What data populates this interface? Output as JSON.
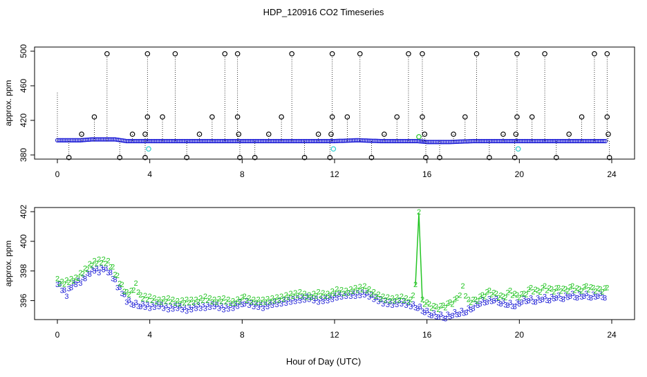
{
  "title": "HDP_120916  CO2 Timeseries",
  "xlabel": "Hour of Day (UTC)",
  "colors": {
    "blue": "#1f1fd6",
    "green": "#22c422",
    "black": "#000000",
    "cyan": "#22cccc"
  },
  "chart_data": [
    {
      "type": "scatter",
      "ylabel": "approx. ppm",
      "xlim": [
        0,
        24
      ],
      "ylim": [
        380,
        500
      ],
      "x_ticks": [
        0,
        4,
        8,
        12,
        16,
        20,
        24
      ],
      "y_ticks": [
        380,
        420,
        460,
        500
      ],
      "baseline_series": {
        "color": "blue",
        "x": [
          0,
          0.5,
          1,
          1.5,
          2,
          2.5,
          3,
          3.5,
          4,
          5,
          6,
          7,
          8,
          9,
          10,
          11,
          12,
          13,
          14,
          15,
          15.6,
          16,
          17,
          18,
          19,
          20,
          21,
          22,
          23,
          23.8
        ],
        "y": [
          397,
          397,
          397,
          398,
          398,
          398,
          396,
          396,
          396,
          396,
          396,
          396,
          396,
          396,
          396,
          396,
          396,
          397,
          396,
          396,
          396,
          395,
          395,
          396,
          396,
          396,
          396,
          396,
          396,
          396
        ]
      },
      "excursions": {
        "color": "black",
        "x_high": [
          2.15,
          3.9,
          5.1,
          7.25,
          7.8,
          10.15,
          11.9,
          13.1,
          15.2,
          15.8,
          18.15,
          19.9,
          21.1,
          23.25,
          23.8
        ],
        "y_high": [
          497,
          497,
          497,
          497,
          497,
          497,
          497,
          497,
          497,
          497,
          497,
          497,
          497,
          497,
          497
        ],
        "x_mid": [
          1.6,
          3.9,
          4.55,
          6.7,
          7.8,
          9.7,
          11.9,
          12.55,
          14.7,
          15.8,
          17.65,
          19.9,
          20.55,
          22.7,
          23.8
        ],
        "y_mid": [
          424,
          424,
          424,
          424,
          424,
          424,
          424,
          424,
          424,
          424,
          424,
          424,
          424,
          424,
          424
        ],
        "x_low_up": [
          1.05,
          3.25,
          3.8,
          6.15,
          7.85,
          9.15,
          11.3,
          11.85,
          14.15,
          15.9,
          17.15,
          19.3,
          19.85,
          22.15,
          23.85
        ],
        "y_low_up": [
          404,
          404,
          404,
          404,
          404,
          404,
          404,
          404,
          404,
          404,
          404,
          404,
          404,
          404,
          404
        ],
        "x_low": [
          0.5,
          2.7,
          3.8,
          5.6,
          7.9,
          8.55,
          10.7,
          11.8,
          13.6,
          15.95,
          16.55,
          18.7,
          19.8,
          21.6,
          23.9
        ],
        "y_low": [
          377,
          377,
          377,
          377,
          377,
          377,
          377,
          377,
          377,
          377,
          377,
          377,
          377,
          377,
          377
        ]
      },
      "highlight_points": {
        "color": "cyan",
        "x": [
          3.95,
          11.95,
          19.95
        ],
        "y": [
          387,
          387,
          387
        ]
      },
      "green_points": {
        "color": "green",
        "x": [
          15.65
        ],
        "y": [
          401
        ]
      }
    },
    {
      "type": "scatter",
      "ylabel": "approx. ppm",
      "xlim": [
        0,
        24
      ],
      "ylim": [
        395,
        402
      ],
      "x_ticks": [
        0,
        4,
        8,
        12,
        16,
        20,
        24
      ],
      "y_ticks": [
        396,
        398,
        400,
        402
      ],
      "series": [
        {
          "marker": "3",
          "color": "blue",
          "x": [
            0,
            0.2,
            0.4,
            0.6,
            0.8,
            1,
            1.2,
            1.4,
            1.6,
            1.8,
            2,
            2.2,
            2.4,
            2.6,
            2.8,
            3,
            3.3,
            3.6,
            4,
            4.4,
            4.8,
            5.2,
            5.6,
            6,
            6.4,
            6.8,
            7.2,
            7.6,
            8.1,
            8.5,
            8.9,
            9.3,
            9.7,
            10.1,
            10.5,
            10.9,
            11.3,
            11.7,
            12.1,
            12.5,
            12.9,
            13.3,
            13.7,
            14.1,
            14.5,
            14.9,
            15.3,
            15.6,
            15.9,
            16.2,
            16.5,
            16.8,
            17.1,
            17.4,
            17.7,
            18,
            18.3,
            18.6,
            18.9,
            19.2,
            19.5,
            19.8,
            20.1,
            20.4,
            20.7,
            21,
            21.3,
            21.6,
            21.9,
            22.2,
            22.5,
            22.8,
            23.1,
            23.4,
            23.7
          ],
          "y": [
            397.2,
            396.8,
            396.4,
            397.0,
            397.2,
            397.3,
            397.6,
            397.9,
            398.1,
            398.0,
            398.2,
            398.0,
            397.6,
            397.0,
            396.6,
            396.0,
            395.8,
            395.7,
            395.6,
            395.7,
            395.5,
            395.6,
            395.4,
            395.6,
            395.6,
            395.7,
            395.5,
            395.6,
            395.9,
            395.7,
            395.6,
            395.8,
            395.9,
            396.0,
            396.1,
            396.2,
            396.0,
            396.1,
            396.3,
            396.4,
            396.4,
            396.5,
            396.2,
            395.9,
            395.8,
            395.9,
            395.7,
            395.6,
            395.3,
            395.1,
            395.0,
            394.9,
            395.1,
            395.2,
            395.3,
            395.6,
            395.9,
            396.0,
            396.1,
            395.9,
            395.8,
            395.7,
            396.0,
            396.1,
            396.0,
            396.2,
            396.1,
            396.3,
            396.2,
            396.4,
            396.3,
            396.4,
            396.3,
            396.4,
            396.3
          ]
        },
        {
          "marker": "2",
          "color": "green",
          "x": [
            0,
            0.2,
            0.4,
            0.6,
            0.8,
            1,
            1.2,
            1.4,
            1.6,
            1.8,
            2,
            2.2,
            2.4,
            2.6,
            2.8,
            3,
            3.2,
            3.4,
            3.6,
            4,
            4.4,
            4.8,
            5.2,
            5.6,
            6,
            6.4,
            6.8,
            7.2,
            7.6,
            8.1,
            8.5,
            8.9,
            9.3,
            9.7,
            10.1,
            10.5,
            10.9,
            11.3,
            11.7,
            12.1,
            12.5,
            12.9,
            13.3,
            13.7,
            14.1,
            14.5,
            14.9,
            15.3,
            15.5,
            15.65,
            15.8,
            16.1,
            16.4,
            16.7,
            17,
            17.3,
            17.55,
            17.8,
            18.1,
            18.4,
            18.7,
            19,
            19.3,
            19.6,
            19.9,
            20.2,
            20.5,
            20.8,
            21.1,
            21.4,
            21.7,
            22,
            22.3,
            22.6,
            22.9,
            23.2,
            23.5,
            23.8
          ],
          "y": [
            397.4,
            397.2,
            397.3,
            397.4,
            397.5,
            397.8,
            398.1,
            398.4,
            398.6,
            398.7,
            398.7,
            398.6,
            398.2,
            397.6,
            397.0,
            396.5,
            396.6,
            397.1,
            396.3,
            396.2,
            396.0,
            396.1,
            395.9,
            396.0,
            396.0,
            396.2,
            396.0,
            396.1,
            395.9,
            396.2,
            396.0,
            396.0,
            396.1,
            396.2,
            396.4,
            396.5,
            396.3,
            396.5,
            396.4,
            396.7,
            396.6,
            396.8,
            396.9,
            396.5,
            396.2,
            396.1,
            396.2,
            396.0,
            397.0,
            401.9,
            396.0,
            395.7,
            395.5,
            395.6,
            395.8,
            396.1,
            396.9,
            396.0,
            396.0,
            396.3,
            396.6,
            396.4,
            396.2,
            396.6,
            396.3,
            396.4,
            396.8,
            396.6,
            396.9,
            396.7,
            396.8,
            396.7,
            396.9,
            396.7,
            396.9,
            396.8,
            396.7,
            396.8
          ]
        }
      ]
    }
  ]
}
